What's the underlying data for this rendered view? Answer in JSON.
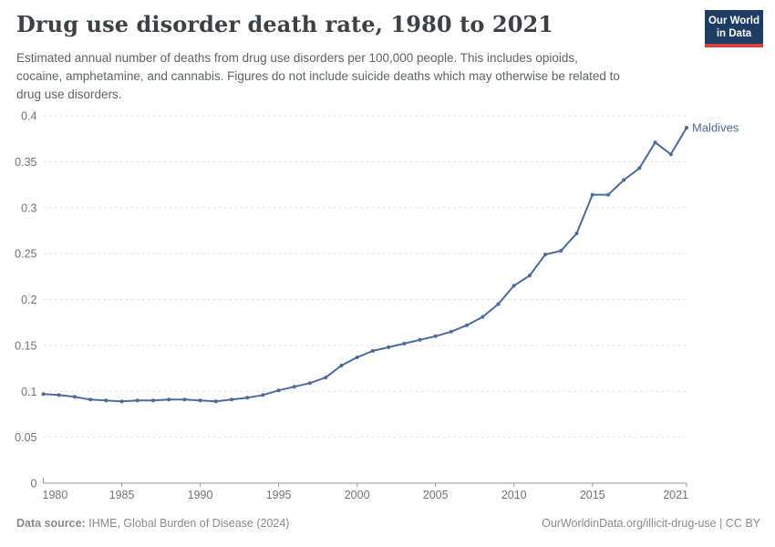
{
  "header": {
    "title": "Drug use disorder death rate, 1980 to 2021",
    "subtitle_lines": [
      "Estimated annual number of deaths from drug use disorders per 100,000 people. This includes opioids,",
      "cocaine, amphetamine, and cannabis. Figures do not include suicide deaths which may otherwise be related to",
      "drug use disorders."
    ],
    "logo": {
      "line1": "Our World",
      "line2": "in Data",
      "bg_color": "#1d3d63",
      "bar_color": "#d64040"
    }
  },
  "chart_data": {
    "type": "line",
    "title": "Drug use disorder death rate, 1980 to 2021",
    "xlabel": "",
    "ylabel": "",
    "x_range": [
      1980,
      2021
    ],
    "ylim": [
      0,
      0.4
    ],
    "grid": "horizontal-dashed",
    "legend_position": "line-end-label",
    "line_color": "#4C6A9C",
    "series": [
      {
        "name": "Maldives",
        "color": "#4C6A9C",
        "x": [
          1980,
          1981,
          1982,
          1983,
          1984,
          1985,
          1986,
          1987,
          1988,
          1989,
          1990,
          1991,
          1992,
          1993,
          1994,
          1995,
          1996,
          1997,
          1998,
          1999,
          2000,
          2001,
          2002,
          2003,
          2004,
          2005,
          2006,
          2007,
          2008,
          2009,
          2010,
          2011,
          2012,
          2013,
          2014,
          2015,
          2016,
          2017,
          2018,
          2019,
          2020,
          2021
        ],
        "values": [
          0.097,
          0.096,
          0.094,
          0.091,
          0.09,
          0.089,
          0.09,
          0.09,
          0.091,
          0.091,
          0.09,
          0.089,
          0.091,
          0.093,
          0.096,
          0.101,
          0.105,
          0.109,
          0.115,
          0.128,
          0.137,
          0.144,
          0.148,
          0.152,
          0.156,
          0.16,
          0.165,
          0.172,
          0.181,
          0.195,
          0.215,
          0.226,
          0.249,
          0.253,
          0.272,
          0.314,
          0.314,
          0.33,
          0.343,
          0.371,
          0.358,
          0.387
        ]
      }
    ],
    "xticks": [
      {
        "year": 1980,
        "label": "1980"
      },
      {
        "year": 1985,
        "label": "1985"
      },
      {
        "year": 1990,
        "label": "1990"
      },
      {
        "year": 1995,
        "label": "1995"
      },
      {
        "year": 2000,
        "label": "2000"
      },
      {
        "year": 2005,
        "label": "2005"
      },
      {
        "year": 2010,
        "label": "2010"
      },
      {
        "year": 2015,
        "label": "2015"
      },
      {
        "year": 2021,
        "label": "2021"
      }
    ],
    "yticks": [
      {
        "value": 0,
        "label": "0"
      },
      {
        "value": 0.05,
        "label": "0.05"
      },
      {
        "value": 0.1,
        "label": "0.1"
      },
      {
        "value": 0.15,
        "label": "0.15"
      },
      {
        "value": 0.2,
        "label": "0.2"
      },
      {
        "value": 0.25,
        "label": "0.25"
      },
      {
        "value": 0.3,
        "label": "0.3"
      },
      {
        "value": 0.35,
        "label": "0.35"
      },
      {
        "value": 0.4,
        "label": "0.4"
      }
    ]
  },
  "footer": {
    "source_label": "Data source:",
    "source_text": "IHME, Global Burden of Disease (2024)",
    "right_text": "OurWorldinData.org/illicit-drug-use | CC BY"
  }
}
